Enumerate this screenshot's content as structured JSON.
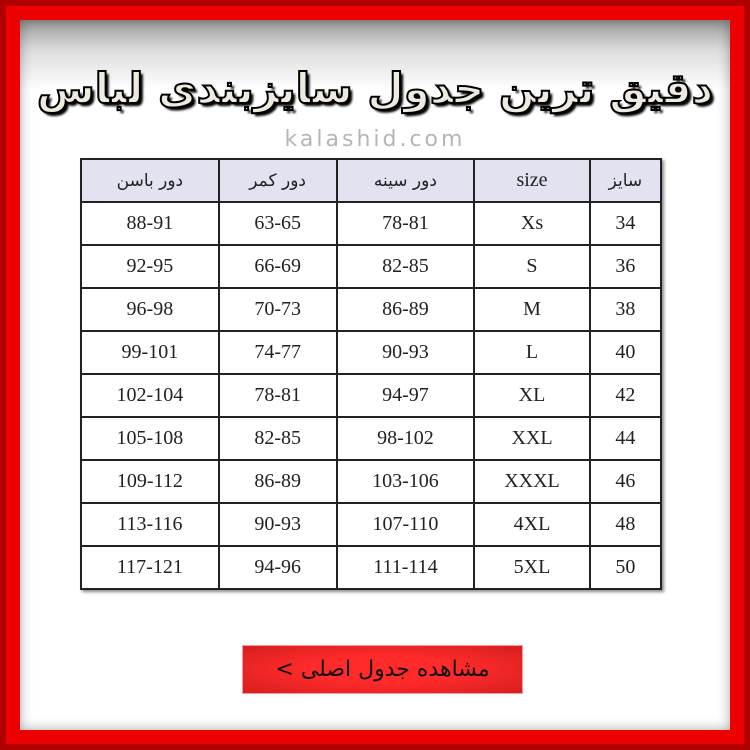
{
  "title": "دقیق ترین جدول سایزبندی لباس",
  "watermark": "kalashid.com",
  "table": {
    "headers": [
      "سایز",
      "size",
      "دور سینه",
      "دور کمر",
      "دور باسن"
    ],
    "rows": [
      [
        "34",
        "Xs",
        "78-81",
        "63-65",
        "88-91"
      ],
      [
        "36",
        "S",
        "82-85",
        "66-69",
        "92-95"
      ],
      [
        "38",
        "M",
        "86-89",
        "70-73",
        "96-98"
      ],
      [
        "40",
        "L",
        "90-93",
        "74-77",
        "99-101"
      ],
      [
        "42",
        "XL",
        "94-97",
        "78-81",
        "102-104"
      ],
      [
        "44",
        "XXL",
        "98-102",
        "82-85",
        "105-108"
      ],
      [
        "46",
        "XXXL",
        "103-106",
        "86-89",
        "109-112"
      ],
      [
        "48",
        "4XL",
        "107-110",
        "90-93",
        "113-116"
      ],
      [
        "50",
        "5XL",
        "111-114",
        "94-96",
        "117-121"
      ]
    ]
  },
  "button": {
    "label": "مشاهده جدول اصلی >"
  },
  "colors": {
    "frame": "#e00000",
    "header_bg": "#e3e2f1",
    "button": "#ff2a2a"
  }
}
